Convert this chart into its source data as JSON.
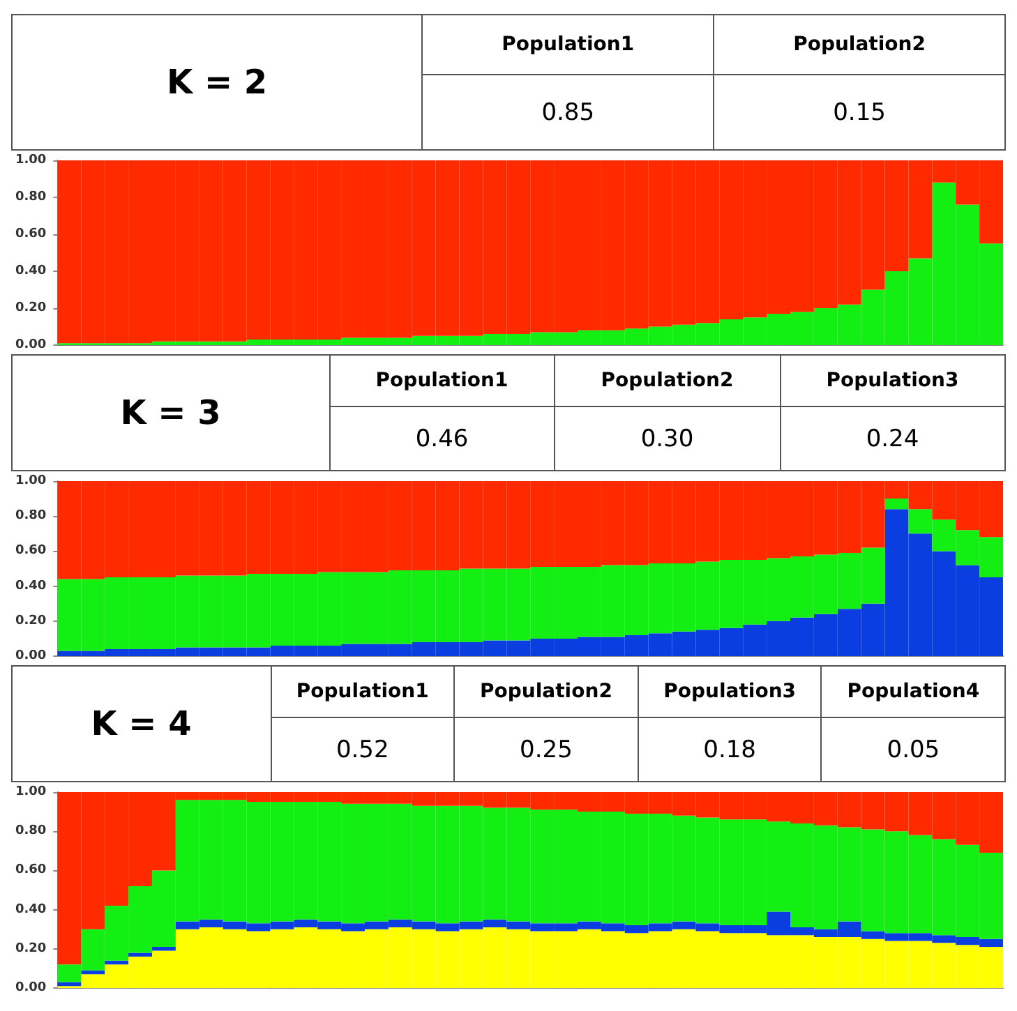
{
  "chart_data": [
    {
      "type": "other",
      "title": "K = 2",
      "categories": [
        "Population1",
        "Population2"
      ],
      "value_labels": [
        "0.85",
        "0.15"
      ]
    },
    {
      "type": "bar",
      "stacked": true,
      "grid": false,
      "tick_labels": "y",
      "categories": [
        null,
        null,
        null,
        null,
        null,
        null,
        null,
        null,
        null,
        null,
        null,
        null,
        null,
        null,
        null,
        null,
        null,
        null,
        null,
        null,
        null,
        null,
        null,
        null,
        null,
        null,
        null,
        null,
        null,
        null,
        null,
        null,
        null,
        null,
        null,
        null,
        null,
        null,
        null,
        null
      ],
      "ylim": [
        0,
        1
      ],
      "yticks": [
        {
          "value": 0,
          "label": "0.00"
        },
        {
          "value": 0.2,
          "label": "0.20"
        },
        {
          "value": 0.4,
          "label": "0.40"
        },
        {
          "value": 0.6,
          "label": "0.60"
        },
        {
          "value": 0.8,
          "label": "0.80"
        },
        {
          "value": 1,
          "label": "1.00"
        }
      ],
      "series": [
        {
          "color": "#13ee13",
          "values": [
            0.01,
            0.01,
            0.01,
            0.01,
            0.02,
            0.02,
            0.02,
            0.02,
            0.03,
            0.03,
            0.03,
            0.03,
            0.04,
            0.04,
            0.04,
            0.05,
            0.05,
            0.05,
            0.06,
            0.06,
            0.07,
            0.07,
            0.08,
            0.08,
            0.09,
            0.1,
            0.11,
            0.12,
            0.14,
            0.15,
            0.17,
            0.18,
            0.2,
            0.22,
            0.3,
            0.4,
            0.47,
            0.88,
            0.76,
            0.55
          ]
        },
        {
          "color": "#ff2a00",
          "values": [
            0.99,
            0.99,
            0.99,
            0.99,
            0.98,
            0.98,
            0.98,
            0.98,
            0.97,
            0.97,
            0.97,
            0.97,
            0.96,
            0.96,
            0.96,
            0.95,
            0.95,
            0.95,
            0.94,
            0.94,
            0.93,
            0.93,
            0.92,
            0.92,
            0.91,
            0.9,
            0.89,
            0.88,
            0.86,
            0.85,
            0.83,
            0.82,
            0.8,
            0.78,
            0.7,
            0.6,
            0.53,
            0.12,
            0.24,
            0.45
          ]
        }
      ]
    },
    {
      "type": "other",
      "title": "K = 3",
      "categories": [
        "Population1",
        "Population2",
        "Population3"
      ],
      "value_labels": [
        "0.46",
        "0.30",
        "0.24"
      ]
    },
    {
      "type": "bar",
      "stacked": true,
      "grid": false,
      "tick_labels": "y",
      "categories": [
        null,
        null,
        null,
        null,
        null,
        null,
        null,
        null,
        null,
        null,
        null,
        null,
        null,
        null,
        null,
        null,
        null,
        null,
        null,
        null,
        null,
        null,
        null,
        null,
        null,
        null,
        null,
        null,
        null,
        null,
        null,
        null,
        null,
        null,
        null,
        null,
        null,
        null,
        null,
        null
      ],
      "ylim": [
        0,
        1
      ],
      "yticks": [
        {
          "value": 0,
          "label": "0.00"
        },
        {
          "value": 0.2,
          "label": "0.20"
        },
        {
          "value": 0.4,
          "label": "0.40"
        },
        {
          "value": 0.6,
          "label": "0.60"
        },
        {
          "value": 0.8,
          "label": "0.80"
        },
        {
          "value": 1,
          "label": "1.00"
        }
      ],
      "series": [
        {
          "color": "#0a3ee0",
          "values": [
            0.03,
            0.03,
            0.04,
            0.04,
            0.04,
            0.05,
            0.05,
            0.05,
            0.05,
            0.06,
            0.06,
            0.06,
            0.07,
            0.07,
            0.07,
            0.08,
            0.08,
            0.08,
            0.09,
            0.09,
            0.1,
            0.1,
            0.11,
            0.11,
            0.12,
            0.13,
            0.14,
            0.15,
            0.16,
            0.18,
            0.2,
            0.22,
            0.24,
            0.27,
            0.3,
            0.84,
            0.7,
            0.6,
            0.52,
            0.45
          ]
        },
        {
          "color": "#13ee13",
          "values": [
            0.41,
            0.41,
            0.41,
            0.41,
            0.41,
            0.41,
            0.41,
            0.41,
            0.42,
            0.41,
            0.41,
            0.42,
            0.41,
            0.41,
            0.42,
            0.41,
            0.41,
            0.42,
            0.41,
            0.41,
            0.41,
            0.41,
            0.4,
            0.41,
            0.4,
            0.4,
            0.39,
            0.39,
            0.39,
            0.37,
            0.36,
            0.35,
            0.34,
            0.32,
            0.32,
            0.06,
            0.14,
            0.18,
            0.2,
            0.23
          ]
        },
        {
          "color": "#ff2a00",
          "values": [
            0.56,
            0.56,
            0.55,
            0.55,
            0.55,
            0.54,
            0.54,
            0.54,
            0.53,
            0.53,
            0.53,
            0.52,
            0.52,
            0.52,
            0.51,
            0.51,
            0.51,
            0.5,
            0.5,
            0.5,
            0.49,
            0.49,
            0.49,
            0.48,
            0.48,
            0.47,
            0.47,
            0.46,
            0.45,
            0.45,
            0.44,
            0.43,
            0.42,
            0.41,
            0.38,
            0.1,
            0.16,
            0.22,
            0.28,
            0.32
          ]
        }
      ]
    },
    {
      "type": "other",
      "title": "K = 4",
      "categories": [
        "Population1",
        "Population2",
        "Population3",
        "Population4"
      ],
      "value_labels": [
        "0.52",
        "0.25",
        "0.18",
        "0.05"
      ]
    },
    {
      "type": "bar",
      "stacked": true,
      "grid": false,
      "tick_labels": "y",
      "categories": [
        null,
        null,
        null,
        null,
        null,
        null,
        null,
        null,
        null,
        null,
        null,
        null,
        null,
        null,
        null,
        null,
        null,
        null,
        null,
        null,
        null,
        null,
        null,
        null,
        null,
        null,
        null,
        null,
        null,
        null,
        null,
        null,
        null,
        null,
        null,
        null,
        null,
        null,
        null,
        null
      ],
      "ylim": [
        0,
        1
      ],
      "yticks": [
        {
          "value": 0,
          "label": "0.00"
        },
        {
          "value": 0.2,
          "label": "0.20"
        },
        {
          "value": 0.4,
          "label": "0.40"
        },
        {
          "value": 0.6,
          "label": "0.60"
        },
        {
          "value": 0.8,
          "label": "0.80"
        },
        {
          "value": 1,
          "label": "1.00"
        }
      ],
      "series": [
        {
          "color": "#ffff00",
          "values": [
            0.01,
            0.07,
            0.12,
            0.16,
            0.19,
            0.3,
            0.31,
            0.3,
            0.29,
            0.3,
            0.31,
            0.3,
            0.29,
            0.3,
            0.31,
            0.3,
            0.29,
            0.3,
            0.31,
            0.3,
            0.29,
            0.29,
            0.3,
            0.29,
            0.28,
            0.29,
            0.3,
            0.29,
            0.28,
            0.28,
            0.27,
            0.27,
            0.26,
            0.26,
            0.25,
            0.24,
            0.24,
            0.23,
            0.22,
            0.21
          ]
        },
        {
          "color": "#0a3ee0",
          "values": [
            0.02,
            0.02,
            0.02,
            0.02,
            0.02,
            0.04,
            0.04,
            0.04,
            0.04,
            0.04,
            0.04,
            0.04,
            0.04,
            0.04,
            0.04,
            0.04,
            0.04,
            0.04,
            0.04,
            0.04,
            0.04,
            0.04,
            0.04,
            0.04,
            0.04,
            0.04,
            0.04,
            0.04,
            0.04,
            0.04,
            0.12,
            0.04,
            0.04,
            0.08,
            0.04,
            0.04,
            0.04,
            0.04,
            0.04,
            0.04
          ]
        },
        {
          "color": "#13ee13",
          "values": [
            0.09,
            0.21,
            0.28,
            0.34,
            0.39,
            0.62,
            0.61,
            0.62,
            0.62,
            0.61,
            0.6,
            0.61,
            0.61,
            0.6,
            0.59,
            0.59,
            0.6,
            0.59,
            0.57,
            0.58,
            0.58,
            0.58,
            0.56,
            0.57,
            0.57,
            0.56,
            0.54,
            0.54,
            0.54,
            0.54,
            0.46,
            0.53,
            0.53,
            0.48,
            0.52,
            0.52,
            0.5,
            0.49,
            0.47,
            0.44
          ]
        },
        {
          "color": "#ff2a00",
          "values": [
            0.88,
            0.7,
            0.58,
            0.48,
            0.4,
            0.04,
            0.04,
            0.04,
            0.05,
            0.05,
            0.05,
            0.05,
            0.06,
            0.06,
            0.06,
            0.07,
            0.07,
            0.07,
            0.08,
            0.08,
            0.09,
            0.09,
            0.1,
            0.1,
            0.11,
            0.11,
            0.12,
            0.13,
            0.14,
            0.14,
            0.15,
            0.16,
            0.17,
            0.18,
            0.19,
            0.2,
            0.22,
            0.24,
            0.27,
            0.31
          ]
        }
      ]
    }
  ]
}
